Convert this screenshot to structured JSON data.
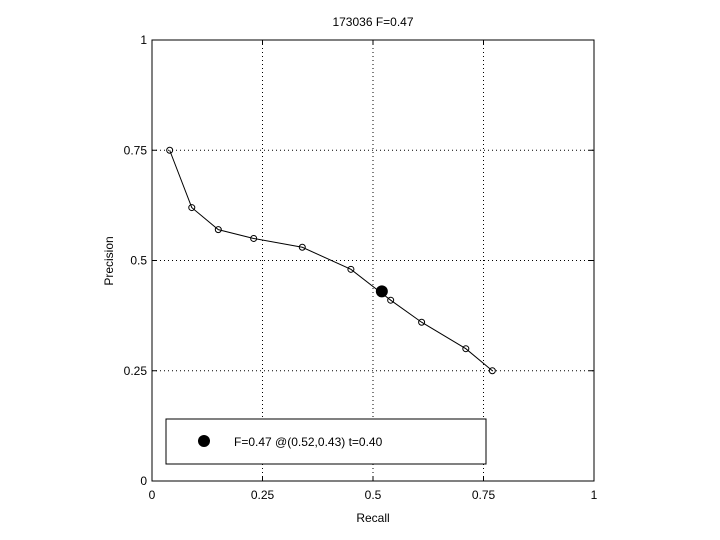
{
  "chart_data": {
    "type": "line",
    "title": "173036 F=0.47",
    "xlabel": "Recall",
    "ylabel": "Precision",
    "xlim": [
      0,
      1
    ],
    "ylim": [
      0,
      1
    ],
    "xticks": [
      0,
      0.25,
      0.5,
      0.75,
      1
    ],
    "yticks": [
      0,
      0.25,
      0.5,
      0.75,
      1
    ],
    "xtick_labels": [
      "0",
      "0.25",
      "0.5",
      "0.75",
      "1"
    ],
    "ytick_labels": [
      "0",
      "0.25",
      "0.5",
      "0.75",
      "1"
    ],
    "grid": true,
    "series": [
      {
        "marker": "open-circle",
        "x": [
          0.04,
          0.09,
          0.15,
          0.23,
          0.34,
          0.45,
          0.54,
          0.61,
          0.71,
          0.77
        ],
        "y": [
          0.75,
          0.62,
          0.57,
          0.55,
          0.53,
          0.48,
          0.41,
          0.36,
          0.3,
          0.25
        ]
      }
    ],
    "best_point": {
      "x": 0.52,
      "y": 0.43,
      "marker": "filled-circle"
    },
    "legend": {
      "placement": "bottom-left",
      "label": "F=0.47 @(0.52,0.43) t=0.40"
    }
  }
}
